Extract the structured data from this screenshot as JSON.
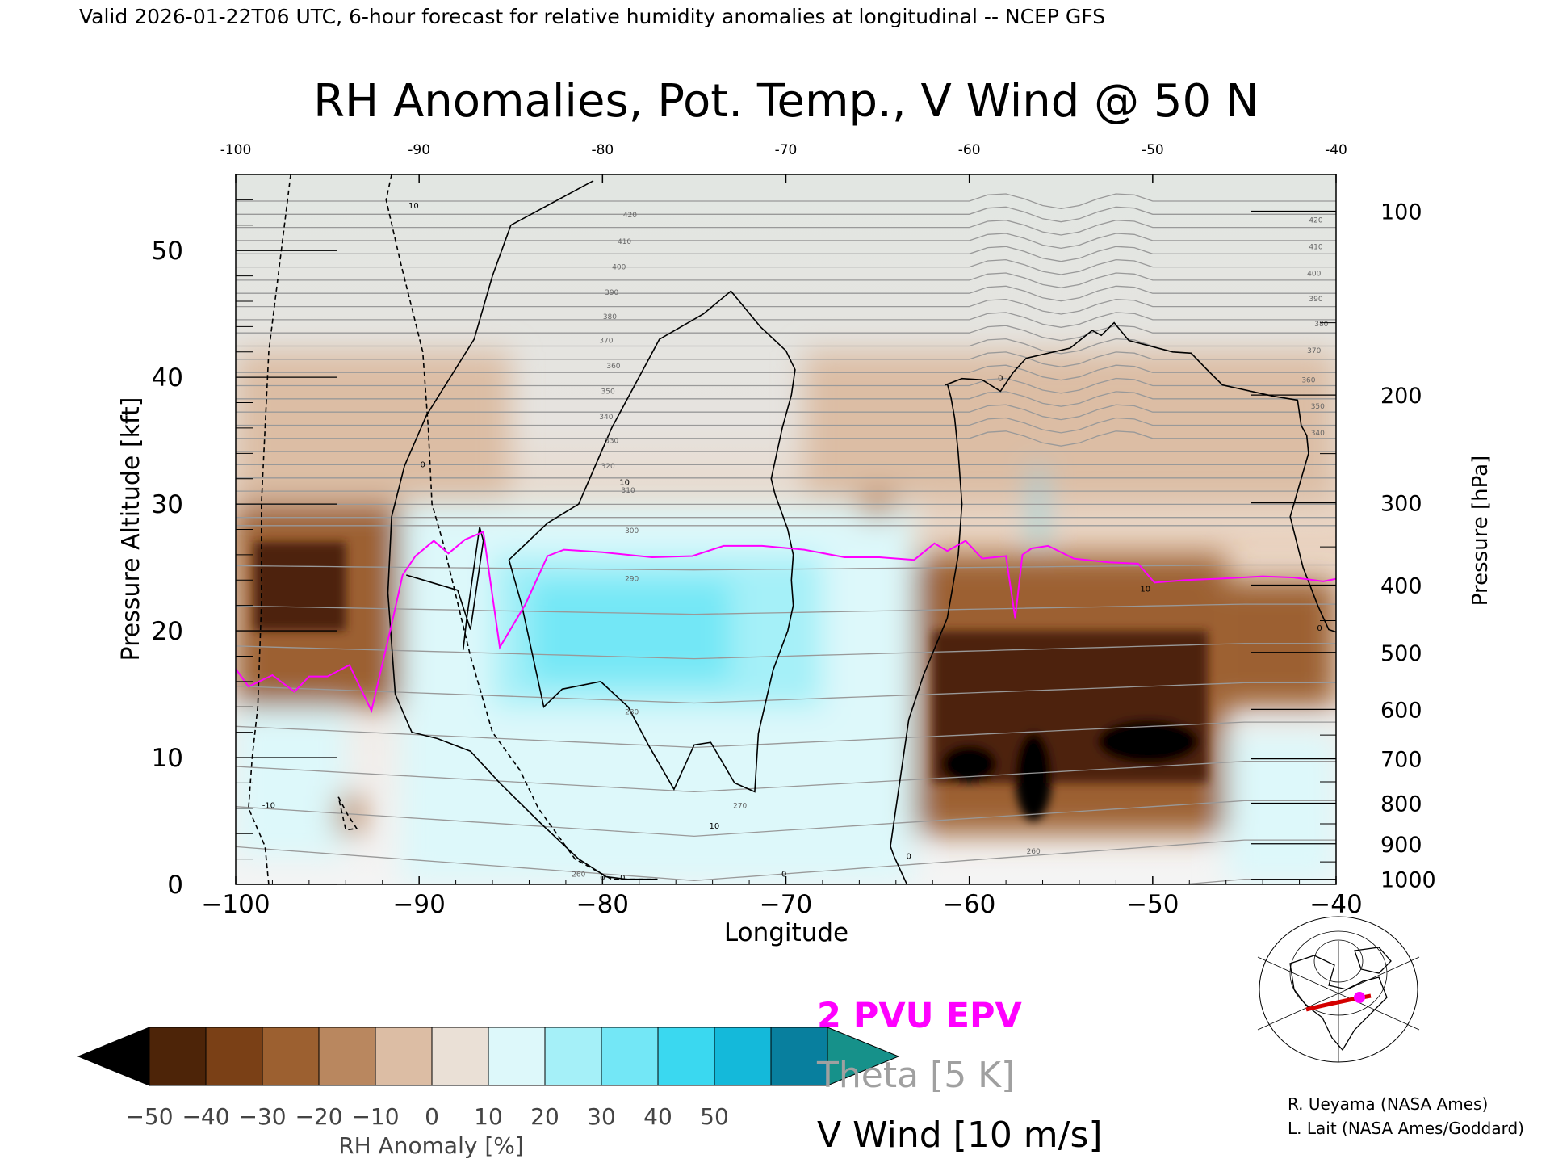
{
  "header": {
    "valid_line": "Valid 2026-01-22T06 UTC, 6-hour forecast for relative humidity anomalies at longitudinal -- NCEP GFS"
  },
  "chart_data": {
    "type": "heatmap",
    "title": "RH Anomalies, Pot. Temp., V Wind @ 50 N",
    "xlabel": "Longitude",
    "ylabel_left": "Pressure Altitude [kft]",
    "ylabel_right": "Pressure [hPa]",
    "xlim": [
      -100,
      -40
    ],
    "ylim": [
      0,
      56
    ],
    "x_ticks": [
      -100,
      -90,
      -80,
      -70,
      -60,
      -50,
      -40
    ],
    "x_tick_labels": [
      "−100",
      "−90",
      "−80",
      "−70",
      "−60",
      "−50",
      "−40"
    ],
    "top_tick_labels": [
      "-100",
      "-90",
      "-80",
      "-70",
      "-60",
      "-50",
      "-40"
    ],
    "y_ticks": [
      0,
      10,
      20,
      30,
      40,
      50
    ],
    "y_tick_labels": [
      "0",
      "10",
      "20",
      "30",
      "40",
      "50"
    ],
    "pressure_ticks": [
      {
        "hPa": 100,
        "kft": 53.1,
        "label": "100"
      },
      {
        "hPa": 200,
        "kft": 38.6,
        "label": "200"
      },
      {
        "hPa": 300,
        "kft": 30.1,
        "label": "300"
      },
      {
        "hPa": 400,
        "kft": 23.6,
        "label": "400"
      },
      {
        "hPa": 500,
        "kft": 18.3,
        "label": "500"
      },
      {
        "hPa": 600,
        "kft": 13.8,
        "label": "600"
      },
      {
        "hPa": 700,
        "kft": 9.9,
        "label": "700"
      },
      {
        "hPa": 800,
        "kft": 6.4,
        "label": "800"
      },
      {
        "hPa": 900,
        "kft": 3.2,
        "label": "900"
      },
      {
        "hPa": 1000,
        "kft": 0.4,
        "label": "1000"
      }
    ],
    "rh_anomaly_regions": [
      {
        "lon": [
          -100,
          -40
        ],
        "kft": [
          0,
          56
        ],
        "value": 0
      },
      {
        "lon": [
          -100,
          -85
        ],
        "kft": [
          30,
          42
        ],
        "value": -10
      },
      {
        "lon": [
          -69,
          -40
        ],
        "kft": [
          30,
          42
        ],
        "value": -10
      },
      {
        "lon": [
          -100,
          -91
        ],
        "kft": [
          14,
          30
        ],
        "value": -30
      },
      {
        "lon": [
          -99,
          -94
        ],
        "kft": [
          20,
          27
        ],
        "value": -45
      },
      {
        "lon": [
          -100,
          -94
        ],
        "kft": [
          2,
          14
        ],
        "value": 15
      },
      {
        "lon": [
          -91,
          -63
        ],
        "kft": [
          0,
          30
        ],
        "value": 15
      },
      {
        "lon": [
          -86,
          -68
        ],
        "kft": [
          14,
          26
        ],
        "value": 28
      },
      {
        "lon": [
          -84,
          -73
        ],
        "kft": [
          16,
          24
        ],
        "value": 35
      },
      {
        "lon": [
          -63,
          -46
        ],
        "kft": [
          4,
          26
        ],
        "value": -30
      },
      {
        "lon": [
          -62,
          -47
        ],
        "kft": [
          8,
          20
        ],
        "value": -45
      },
      {
        "lon": [
          -46,
          -40
        ],
        "kft": [
          14,
          24
        ],
        "value": -25
      },
      {
        "lon": [
          -46,
          -40
        ],
        "kft": [
          0,
          12
        ],
        "value": 15
      },
      {
        "lon": [
          -56.5,
          -56
        ],
        "kft": [
          27,
          33
        ],
        "value": 40
      },
      {
        "lon": [
          -61.5,
          -58.5
        ],
        "kft": [
          8,
          11
        ],
        "value": -55
      },
      {
        "lon": [
          -57.5,
          -55.5
        ],
        "kft": [
          5,
          12
        ],
        "value": -55
      },
      {
        "lon": [
          -53,
          -47.5
        ],
        "kft": [
          9.5,
          13
        ],
        "value": -55
      },
      {
        "lon": [
          -66,
          -64
        ],
        "kft": [
          29,
          31
        ],
        "value": -15
      },
      {
        "lon": [
          -94.5,
          -93
        ],
        "kft": [
          4,
          7
        ],
        "value": -15
      }
    ],
    "epv_2pvu_line": {
      "lon": [
        -100,
        -99.3,
        -98,
        -96.8,
        -96,
        -95,
        -93.8,
        -92.6,
        -91.5,
        -90.9,
        -90.2,
        -89.2,
        -88.4,
        -87.5,
        -86.5,
        -85.6,
        -84.2,
        -83,
        -82.1,
        -80,
        -77.3,
        -75.1,
        -73.4,
        -71.3,
        -69,
        -66.8,
        -64.9,
        -63,
        -61.9,
        -61.2,
        -60.2,
        -59.3,
        -58,
        -57.5,
        -57.1,
        -56.6,
        -55.7,
        -54.3,
        -52.4,
        -50.8,
        -49.9,
        -48.2,
        -46.6,
        -45.2,
        -44,
        -42.3,
        -40.7,
        -40
      ],
      "kft": [
        17,
        15.6,
        16.5,
        15.2,
        16.4,
        16.4,
        17.3,
        13.7,
        20.5,
        24.4,
        25.9,
        27.1,
        26.1,
        27.2,
        27.8,
        18.7,
        22.1,
        25.9,
        26.4,
        26.2,
        25.8,
        25.9,
        26.7,
        26.7,
        26.4,
        25.8,
        25.8,
        25.6,
        26.9,
        26.3,
        27.1,
        25.7,
        25.9,
        21,
        26,
        26.5,
        26.7,
        25.7,
        25.4,
        25.3,
        23.8,
        24,
        24.1,
        24.2,
        24.3,
        24.2,
        23.9,
        24.1
      ]
    },
    "theta_levels_K": [
      255,
      260,
      265,
      270,
      275,
      280,
      285,
      290,
      295,
      300,
      305,
      310,
      315,
      320,
      325,
      330,
      335,
      340,
      345,
      350,
      355,
      360,
      365,
      370,
      375,
      380,
      385,
      390,
      395,
      400,
      405,
      410,
      415,
      420,
      425
    ],
    "theta_interval_K": 5,
    "theta_inline_labels": [
      {
        "text": "420",
        "lon": -78.5,
        "kft": 52.8
      },
      {
        "text": "410",
        "lon": -78.8,
        "kft": 50.7
      },
      {
        "text": "400",
        "lon": -79.1,
        "kft": 48.7
      },
      {
        "text": "390",
        "lon": -79.5,
        "kft": 46.7
      },
      {
        "text": "380",
        "lon": -79.6,
        "kft": 44.8
      },
      {
        "text": "370",
        "lon": -79.8,
        "kft": 42.9
      },
      {
        "text": "360",
        "lon": -79.4,
        "kft": 40.9
      },
      {
        "text": "350",
        "lon": -79.7,
        "kft": 38.9
      },
      {
        "text": "340",
        "lon": -79.8,
        "kft": 36.9
      },
      {
        "text": "330",
        "lon": -79.5,
        "kft": 35
      },
      {
        "text": "320",
        "lon": -79.7,
        "kft": 33
      },
      {
        "text": "310",
        "lon": -78.6,
        "kft": 31.1
      },
      {
        "text": "300",
        "lon": -78.4,
        "kft": 27.9
      },
      {
        "text": "290",
        "lon": -78.4,
        "kft": 24.1
      },
      {
        "text": "280",
        "lon": -78.4,
        "kft": 13.6
      },
      {
        "text": "270",
        "lon": -72.5,
        "kft": 6.2
      },
      {
        "text": "260",
        "lon": -56.5,
        "kft": 2.6
      },
      {
        "text": "260",
        "lon": -81.3,
        "kft": 0.8
      },
      {
        "text": "420",
        "lon": -41.1,
        "kft": 52.4
      },
      {
        "text": "410",
        "lon": -41.1,
        "kft": 50.3
      },
      {
        "text": "400",
        "lon": -41.2,
        "kft": 48.2
      },
      {
        "text": "390",
        "lon": -41.1,
        "kft": 46.2
      },
      {
        "text": "380",
        "lon": -40.8,
        "kft": 44.2
      },
      {
        "text": "370",
        "lon": -41.2,
        "kft": 42.1
      },
      {
        "text": "360",
        "lon": -41.5,
        "kft": 39.8
      },
      {
        "text": "350",
        "lon": -41,
        "kft": 37.7
      },
      {
        "text": "340",
        "lon": -41,
        "kft": 35.6
      }
    ],
    "v_wind_contour_labels": [
      {
        "text": "10",
        "lon": -90.3,
        "kft": 53.5
      },
      {
        "text": "0",
        "lon": -89.8,
        "kft": 33.1
      },
      {
        "text": "10",
        "lon": -78.8,
        "kft": 31.7
      },
      {
        "text": "-10",
        "lon": -98.2,
        "kft": 6.2
      },
      {
        "text": "0",
        "lon": -78.9,
        "kft": 0.5
      },
      {
        "text": "0",
        "lon": -80,
        "kft": 0.5
      },
      {
        "text": "10",
        "lon": -73.9,
        "kft": 4.6
      },
      {
        "text": "0",
        "lon": -70.1,
        "kft": 0.8
      },
      {
        "text": "0",
        "lon": -63.3,
        "kft": 2.2
      },
      {
        "text": "0",
        "lon": -58.3,
        "kft": 39.9
      },
      {
        "text": "10",
        "lon": -50.4,
        "kft": 23.3
      },
      {
        "text": "0",
        "lon": -40.9,
        "kft": 20.2
      }
    ],
    "v_wind_interval_ms": 10,
    "legend": {
      "epv": "2 PVU EPV",
      "theta": "Theta [5 K]",
      "vwind": "V Wind [10 m/s]"
    },
    "colorbar": {
      "label": "RH Anomaly [%]",
      "tick_labels": [
        "−50",
        "−40",
        "−30",
        "−20",
        "−10",
        "0",
        "10",
        "20",
        "30",
        "40",
        "50"
      ],
      "colors": [
        "#000000",
        "#4d2408",
        "#7a4016",
        "#9c6030",
        "#b9875f",
        "#dcbda4",
        "#eae0d6",
        "#ddf8fa",
        "#a5f0f8",
        "#73e7f6",
        "#3ad8f0",
        "#14b9da",
        "#087f9e",
        "#16918a"
      ]
    }
  },
  "credits": {
    "line1": "R. Ueyama (NASA Ames)",
    "line2": "L. Lait (NASA Ames/Goddard)"
  },
  "colors": {
    "epv_line": "#ff00ff",
    "theta_line": "#999999",
    "wind_contour": "#000000"
  }
}
